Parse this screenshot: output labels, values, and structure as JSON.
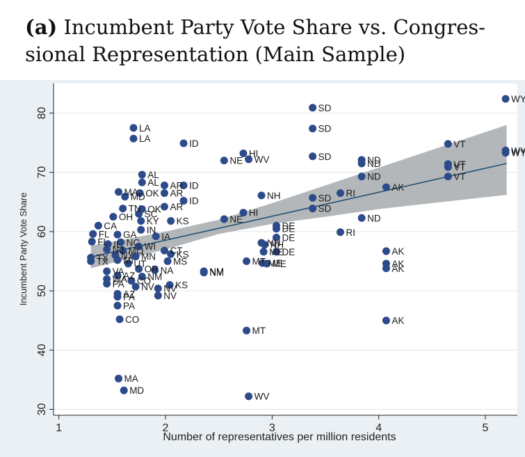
{
  "title": {
    "prefix": "(a)",
    "line1": "Incumbent Party Vote Share vs. Congres-",
    "line2": "sional Representation (Main Sample)"
  },
  "colors": {
    "point": "#2d4a8a",
    "fit_line": "#1f4f73",
    "ci_band": "#a7aaad",
    "plot_bg": "#ffffff",
    "outer_bg": "#eaf0f4"
  },
  "chart_data": {
    "type": "scatter",
    "title": "Incumbent Party Vote Share vs. Congressional Representation (Main Sample)",
    "xlabel": "Number of representatives per million residents",
    "ylabel": "Incumbent Party Vote Share",
    "xlim": [
      0.95,
      5.3
    ],
    "ylim": [
      29,
      85
    ],
    "xticks": [
      1,
      2,
      3,
      4,
      5
    ],
    "yticks": [
      30,
      40,
      50,
      60,
      70,
      80
    ],
    "grid": "horizontal",
    "fit": {
      "x0": 1.3,
      "y0": 55.7,
      "x1": 5.2,
      "y1": 71.5
    },
    "ci": [
      [
        1.3,
        53.8,
        57.6
      ],
      [
        2.0,
        57.0,
        60.0
      ],
      [
        2.5,
        59.6,
        62.0
      ],
      [
        3.0,
        61.3,
        64.8
      ],
      [
        3.5,
        62.5,
        67.8
      ],
      [
        4.0,
        63.8,
        70.8
      ],
      [
        4.5,
        64.8,
        73.8
      ],
      [
        5.2,
        66.2,
        78.0
      ]
    ],
    "points": [
      {
        "x": 1.7,
        "y": 77.5,
        "label": "LA"
      },
      {
        "x": 1.7,
        "y": 75.7,
        "label": "LA"
      },
      {
        "x": 2.17,
        "y": 74.9,
        "label": "ID"
      },
      {
        "x": 1.78,
        "y": 69.6,
        "label": "AL"
      },
      {
        "x": 1.78,
        "y": 68.3,
        "label": "AL"
      },
      {
        "x": 2.17,
        "y": 67.8,
        "label": "ID"
      },
      {
        "x": 1.99,
        "y": 67.8,
        "label": "AR"
      },
      {
        "x": 1.99,
        "y": 66.5,
        "label": "AR"
      },
      {
        "x": 1.76,
        "y": 66.5,
        "label": "OK"
      },
      {
        "x": 1.56,
        "y": 66.7,
        "label": "MA"
      },
      {
        "x": 1.62,
        "y": 65.9,
        "label": "MD"
      },
      {
        "x": 2.17,
        "y": 65.2,
        "label": "ID"
      },
      {
        "x": 1.99,
        "y": 64.2,
        "label": "AR"
      },
      {
        "x": 1.78,
        "y": 63.8,
        "label": "OK"
      },
      {
        "x": 1.6,
        "y": 63.9,
        "label": "TN"
      },
      {
        "x": 1.75,
        "y": 63.0,
        "label": "SC"
      },
      {
        "x": 1.51,
        "y": 62.5,
        "label": "OH"
      },
      {
        "x": 1.77,
        "y": 61.8,
        "label": "KY"
      },
      {
        "x": 2.05,
        "y": 61.8,
        "label": "KS"
      },
      {
        "x": 1.37,
        "y": 61.0,
        "label": "CA"
      },
      {
        "x": 1.77,
        "y": 60.3,
        "label": "IN"
      },
      {
        "x": 1.32,
        "y": 59.6,
        "label": "FL"
      },
      {
        "x": 1.55,
        "y": 59.5,
        "label": "GA"
      },
      {
        "x": 1.91,
        "y": 59.2,
        "label": "IA"
      },
      {
        "x": 1.31,
        "y": 58.3,
        "label": "FL"
      },
      {
        "x": 1.58,
        "y": 58.2,
        "label": "NC"
      },
      {
        "x": 1.46,
        "y": 57.9,
        "label": "IL"
      },
      {
        "x": 1.75,
        "y": 57.5,
        "label": "WI"
      },
      {
        "x": 1.45,
        "y": 57.0,
        "label": "NJ"
      },
      {
        "x": 1.6,
        "y": 56.8,
        "label": "MO"
      },
      {
        "x": 1.99,
        "y": 56.8,
        "label": "CT"
      },
      {
        "x": 2.05,
        "y": 56.2,
        "label": "KS"
      },
      {
        "x": 1.53,
        "y": 56.0,
        "label": "NY"
      },
      {
        "x": 1.72,
        "y": 55.8,
        "label": "MN"
      },
      {
        "x": 1.3,
        "y": 55.6,
        "label": "TX"
      },
      {
        "x": 1.3,
        "y": 55.0,
        "label": "TX"
      },
      {
        "x": 1.55,
        "y": 55.2,
        "label": "MI"
      },
      {
        "x": 2.02,
        "y": 55.0,
        "label": "MS"
      },
      {
        "x": 1.65,
        "y": 54.6,
        "label": "UT"
      },
      {
        "x": 1.75,
        "y": 53.7,
        "label": "OR"
      },
      {
        "x": 1.9,
        "y": 53.5,
        "label": "NA"
      },
      {
        "x": 1.45,
        "y": 53.3,
        "label": "VA"
      },
      {
        "x": 1.55,
        "y": 52.6,
        "label": "AZ"
      },
      {
        "x": 1.78,
        "y": 52.4,
        "label": "NM"
      },
      {
        "x": 1.45,
        "y": 52.0,
        "label": "WA"
      },
      {
        "x": 1.68,
        "y": 51.7,
        "label": "CO"
      },
      {
        "x": 1.45,
        "y": 51.2,
        "label": "PA"
      },
      {
        "x": 1.72,
        "y": 50.7,
        "label": "NV"
      },
      {
        "x": 2.04,
        "y": 51.0,
        "label": "KS"
      },
      {
        "x": 1.93,
        "y": 50.4,
        "label": "NV"
      },
      {
        "x": 1.55,
        "y": 49.5,
        "label": "AZ"
      },
      {
        "x": 1.55,
        "y": 49.0,
        "label": "PA"
      },
      {
        "x": 1.93,
        "y": 49.2,
        "label": "NV"
      },
      {
        "x": 1.55,
        "y": 47.5,
        "label": "PA"
      },
      {
        "x": 1.57,
        "y": 45.2,
        "label": "CO"
      },
      {
        "x": 1.56,
        "y": 35.2,
        "label": "MA"
      },
      {
        "x": 1.61,
        "y": 33.2,
        "label": "MD"
      },
      {
        "x": 2.36,
        "y": 53.3,
        "label": "NM"
      },
      {
        "x": 2.36,
        "y": 53.1,
        "label": "NM"
      },
      {
        "x": 2.55,
        "y": 72.0,
        "label": "NE"
      },
      {
        "x": 2.55,
        "y": 62.1,
        "label": "NE"
      },
      {
        "x": 2.73,
        "y": 73.2,
        "label": "HI"
      },
      {
        "x": 2.73,
        "y": 63.2,
        "label": "HI"
      },
      {
        "x": 2.78,
        "y": 72.2,
        "label": "WV"
      },
      {
        "x": 2.78,
        "y": 32.2,
        "label": "WV"
      },
      {
        "x": 2.76,
        "y": 55.0,
        "label": "MT"
      },
      {
        "x": 2.76,
        "y": 43.3,
        "label": "MT"
      },
      {
        "x": 2.9,
        "y": 66.1,
        "label": "NH"
      },
      {
        "x": 2.9,
        "y": 58.1,
        "label": "NH"
      },
      {
        "x": 2.93,
        "y": 57.8,
        "label": "NH"
      },
      {
        "x": 2.92,
        "y": 56.6,
        "label": "ME"
      },
      {
        "x": 2.91,
        "y": 54.7,
        "label": "ME"
      },
      {
        "x": 2.95,
        "y": 54.6,
        "label": "ME"
      },
      {
        "x": 3.04,
        "y": 61.0,
        "label": "DE"
      },
      {
        "x": 3.04,
        "y": 60.5,
        "label": "DE"
      },
      {
        "x": 3.04,
        "y": 59.0,
        "label": "DE"
      },
      {
        "x": 3.04,
        "y": 56.6,
        "label": "DE"
      },
      {
        "x": 3.38,
        "y": 80.9,
        "label": "SD"
      },
      {
        "x": 3.38,
        "y": 77.4,
        "label": "SD"
      },
      {
        "x": 3.38,
        "y": 72.7,
        "label": "SD"
      },
      {
        "x": 3.38,
        "y": 65.7,
        "label": "SD"
      },
      {
        "x": 3.38,
        "y": 63.9,
        "label": "SD"
      },
      {
        "x": 3.64,
        "y": 66.5,
        "label": "RI"
      },
      {
        "x": 3.64,
        "y": 59.9,
        "label": "RI"
      },
      {
        "x": 3.84,
        "y": 72.1,
        "label": "ND"
      },
      {
        "x": 3.84,
        "y": 71.5,
        "label": "ND"
      },
      {
        "x": 3.84,
        "y": 69.3,
        "label": "ND"
      },
      {
        "x": 3.84,
        "y": 62.3,
        "label": "ND"
      },
      {
        "x": 4.07,
        "y": 67.5,
        "label": "AK"
      },
      {
        "x": 4.07,
        "y": 56.7,
        "label": "AK"
      },
      {
        "x": 4.07,
        "y": 54.6,
        "label": "AK"
      },
      {
        "x": 4.07,
        "y": 53.8,
        "label": "AK"
      },
      {
        "x": 4.07,
        "y": 45.0,
        "label": "AK"
      },
      {
        "x": 4.65,
        "y": 74.8,
        "label": "VT"
      },
      {
        "x": 4.65,
        "y": 71.4,
        "label": "VT"
      },
      {
        "x": 4.65,
        "y": 70.9,
        "label": "VT"
      },
      {
        "x": 4.65,
        "y": 69.3,
        "label": "VT"
      },
      {
        "x": 5.19,
        "y": 82.4,
        "label": "WY"
      },
      {
        "x": 5.19,
        "y": 73.7,
        "label": "WY"
      },
      {
        "x": 5.19,
        "y": 73.3,
        "label": "WY"
      }
    ]
  }
}
